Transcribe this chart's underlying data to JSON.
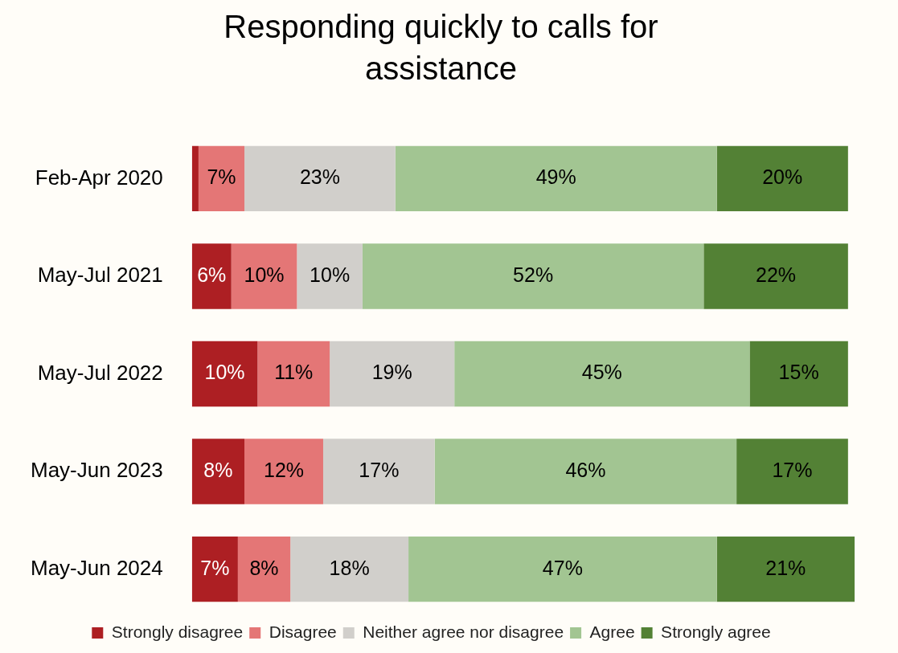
{
  "chart_data": {
    "type": "bar",
    "title": "Responding quickly to calls for assistance",
    "orientation": "horizontal",
    "stacked": true,
    "legend": "bottom",
    "categories": [
      "Feb-Apr 2020",
      "May-Jul 2021",
      "May-Jul 2022",
      "May-Jun 2023",
      "May-Jun 2024"
    ],
    "series": [
      {
        "name": "Strongly disagree",
        "color": "#ad1f23",
        "values": [
          1,
          6,
          10,
          8,
          7
        ],
        "value_labels": [
          null,
          "6%",
          "10%",
          "8%",
          "7%"
        ]
      },
      {
        "name": "Disagree",
        "color": "#e47676",
        "values": [
          7,
          10,
          11,
          12,
          8
        ],
        "value_labels": [
          "7%",
          "10%",
          "11%",
          "12%",
          "8%"
        ]
      },
      {
        "name": "Neither agree nor disagree",
        "color": "#d1cfcb",
        "values": [
          23,
          10,
          19,
          17,
          18
        ],
        "value_labels": [
          "23%",
          "10%",
          "19%",
          "17%",
          "18%"
        ]
      },
      {
        "name": "Agree",
        "color": "#a2c592",
        "values": [
          49,
          52,
          45,
          46,
          47
        ],
        "value_labels": [
          "49%",
          "52%",
          "45%",
          "46%",
          "47%"
        ]
      },
      {
        "name": "Strongly agree",
        "color": "#538135",
        "values": [
          20,
          22,
          15,
          17,
          21
        ],
        "value_labels": [
          "20%",
          "22%",
          "15%",
          "17%",
          "21%"
        ]
      }
    ]
  }
}
